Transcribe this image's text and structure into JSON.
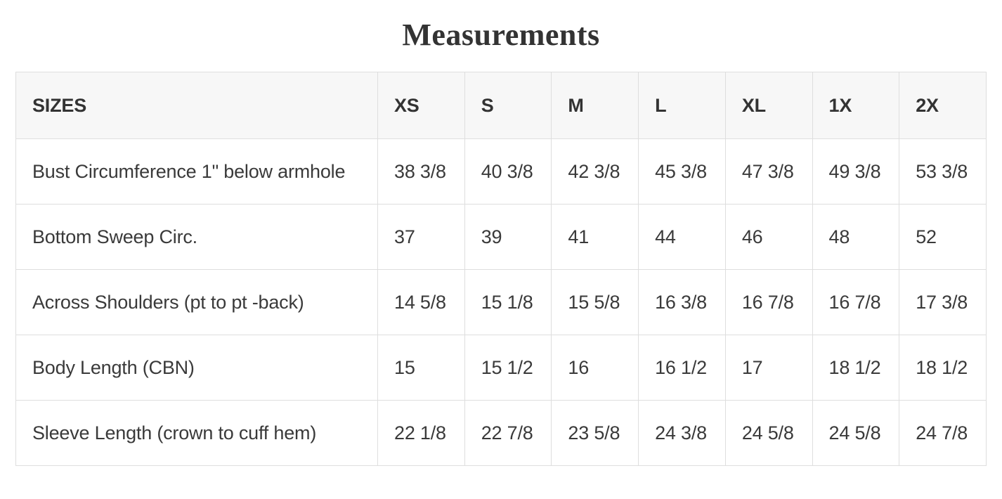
{
  "page": {
    "title": "Measurements"
  },
  "colors": {
    "header_background": "#f7f7f7",
    "row_background": "#ffffff",
    "border": "#dedede",
    "text": "#3a3a3a",
    "title_text": "#333333"
  },
  "table": {
    "columns": [
      "SIZES",
      "XS",
      "S",
      "M",
      "L",
      "XL",
      "1X",
      "2X"
    ],
    "rows": [
      {
        "label": "Bust Circumference 1\" below armhole",
        "values": [
          "38 3/8",
          "40 3/8",
          "42 3/8",
          "45 3/8",
          "47 3/8",
          "49 3/8",
          "53 3/8"
        ]
      },
      {
        "label": "Bottom Sweep Circ.",
        "values": [
          "37",
          "39",
          "41",
          "44",
          "46",
          "48",
          "52"
        ]
      },
      {
        "label": "Across Shoulders (pt to pt -back)",
        "values": [
          "14 5/8",
          "15 1/8",
          "15 5/8",
          "16 3/8",
          "16 7/8",
          "16 7/8",
          "17 3/8"
        ]
      },
      {
        "label": "Body Length (CBN)",
        "values": [
          "15",
          "15 1/2",
          "16",
          "16 1/2",
          "17",
          "18 1/2",
          "18 1/2"
        ]
      },
      {
        "label": "Sleeve Length (crown to cuff hem)",
        "values": [
          "22 1/8",
          "22 7/8",
          "23 5/8",
          "24 3/8",
          "24 5/8",
          "24 5/8",
          "24 7/8"
        ]
      }
    ]
  }
}
